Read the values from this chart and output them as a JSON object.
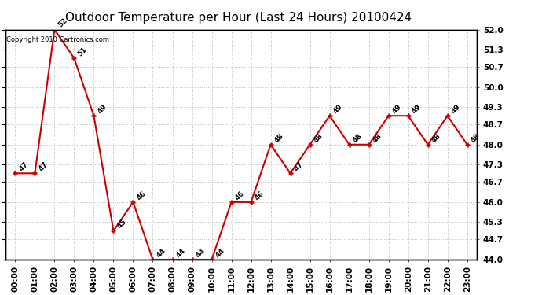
{
  "title": "Outdoor Temperature per Hour (Last 24 Hours) 20100424",
  "copyright": "Copyright 2010 Cartronics.com",
  "hours": [
    "00:00",
    "01:00",
    "02:00",
    "03:00",
    "04:00",
    "05:00",
    "06:00",
    "07:00",
    "08:00",
    "09:00",
    "10:00",
    "11:00",
    "12:00",
    "13:00",
    "14:00",
    "15:00",
    "16:00",
    "17:00",
    "18:00",
    "19:00",
    "20:00",
    "21:00",
    "22:00",
    "23:00"
  ],
  "temps": [
    47,
    47,
    52,
    51,
    49,
    45,
    46,
    44,
    44,
    44,
    44,
    46,
    46,
    48,
    47,
    48,
    49,
    48,
    48,
    49,
    49,
    48,
    49,
    48
  ],
  "line_color": "#cc0000",
  "marker_color": "#cc0000",
  "bg_color": "#ffffff",
  "grid_color": "#bbbbbb",
  "ylim_min": 44.0,
  "ylim_max": 52.0,
  "yticks": [
    44.0,
    44.7,
    45.3,
    46.0,
    46.7,
    47.3,
    48.0,
    48.7,
    49.3,
    50.0,
    50.7,
    51.3,
    52.0
  ],
  "ytick_labels": [
    "44.0",
    "44.7",
    "45.3",
    "46.0",
    "46.7",
    "47.3",
    "48.0",
    "48.7",
    "49.3",
    "50.0",
    "50.7",
    "51.3",
    "52.0"
  ],
  "title_fontsize": 11,
  "label_fontsize": 6.5,
  "copyright_fontsize": 6,
  "tick_fontsize": 7.5
}
